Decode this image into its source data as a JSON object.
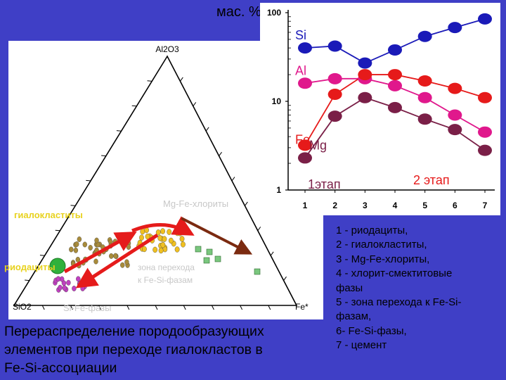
{
  "header": {
    "units_label": "мас. %"
  },
  "ternary": {
    "apex_top": "Al2O3",
    "apex_left": "SiO2",
    "apex_right": "Fe*",
    "labels": {
      "hyaloclastites": "гиалокластиты",
      "rhyodacites": "риодациты",
      "mg_fe_chlorites": "Mg-Fe-хлориты",
      "transition_zone_l1": "зона перехода",
      "transition_zone_l2": "к Fe-Si-фазам",
      "si_fe_phases": "Si-Fe-фазы"
    },
    "colors": {
      "arrow_red": "#e51b1b",
      "arrow_brown": "#7b2a10",
      "green_dot": "#2fb13c",
      "hyalo_dot": "#a88b3a",
      "chlorite_dot": "#7ac77e",
      "transition_dot": "#f0c020",
      "sife_dot": "#c040c0"
    }
  },
  "chart_data": {
    "type": "line",
    "x": [
      1,
      2,
      3,
      4,
      5,
      6,
      7
    ],
    "y_scale": "log",
    "ylim": [
      1,
      100
    ],
    "y_ticks": [
      "1",
      "10",
      "100"
    ],
    "x_ticks": [
      "1",
      "2",
      "3",
      "4",
      "5",
      "6",
      "7"
    ],
    "series": [
      {
        "name": "Si",
        "color": "#1a1ab8",
        "values": [
          40,
          42,
          27,
          38,
          54,
          68,
          85
        ]
      },
      {
        "name": "Al",
        "color": "#e0188c",
        "values": [
          16,
          18,
          18,
          15,
          11,
          7,
          4.5
        ]
      },
      {
        "name": "Fe",
        "color": "#e61a1a",
        "values": [
          3.2,
          12,
          20,
          20,
          17,
          14,
          11
        ]
      },
      {
        "name": "Mg",
        "color": "#7a1f47",
        "values": [
          2.3,
          6.8,
          11,
          8.5,
          6.3,
          4.8,
          2.8
        ]
      }
    ],
    "annotations": [
      "1этап",
      "2 этап"
    ]
  },
  "legend": {
    "items": [
      "1 - риодациты,",
      "2 - гиалокластиты,",
      "3 - Mg-Fe-хлориты,",
      "4 - хлорит-смектитовые",
      "фазы",
      "5 - зона перехода к Fe-Si-",
      "фазам,",
      "6- Fe-Si-фазы,",
      "7 - цемент"
    ]
  },
  "caption": {
    "lines": [
      "Перераспределение породообразующих",
      "элементов при переходе гиалокластов в",
      "Fe-Si-ассоциации"
    ]
  }
}
